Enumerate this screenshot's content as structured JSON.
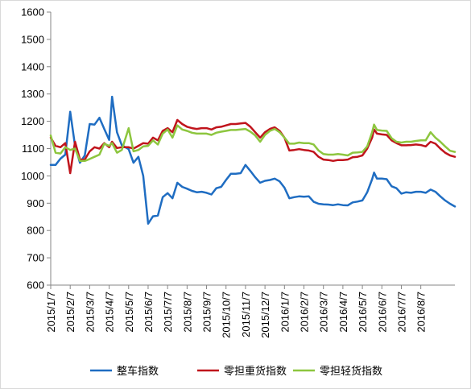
{
  "chart_data": {
    "type": "line",
    "title": "",
    "xlabel": "",
    "ylabel": "",
    "ylim": [
      600,
      1600
    ],
    "yticks": [
      600,
      700,
      800,
      900,
      1000,
      1100,
      1200,
      1300,
      1400,
      1500,
      1600
    ],
    "xticks": [
      "2015/1/7",
      "2015/2/7",
      "2015/3/7",
      "2015/4/7",
      "2015/5/7",
      "2015/6/7",
      "2015/7/7",
      "2015/8/7",
      "2015/9/7",
      "2015/10/7",
      "2015/11/7",
      "2015/12/7",
      "2016/1/7",
      "2016/2/7",
      "2016/3/7",
      "2016/4/7",
      "2016/5/7",
      "2016/6/7",
      "2016/7/7",
      "2016/8/7"
    ],
    "grid": false,
    "legend_position": "bottom",
    "series": [
      {
        "name": "整车指数",
        "color": "#1f6dc2",
        "points": [
          [
            0,
            1040
          ],
          [
            0.25,
            1040
          ],
          [
            0.5,
            1063
          ],
          [
            0.75,
            1078
          ],
          [
            1,
            1235
          ],
          [
            1.25,
            1110
          ],
          [
            1.5,
            1048
          ],
          [
            1.75,
            1075
          ],
          [
            2,
            1190
          ],
          [
            2.25,
            1188
          ],
          [
            2.5,
            1213
          ],
          [
            2.75,
            1172
          ],
          [
            3,
            1132
          ],
          [
            3.15,
            1290
          ],
          [
            3.4,
            1160
          ],
          [
            3.65,
            1112
          ],
          [
            4,
            1098
          ],
          [
            4.25,
            1048
          ],
          [
            4.5,
            1070
          ],
          [
            4.75,
            1000
          ],
          [
            5,
            825
          ],
          [
            5.25,
            852
          ],
          [
            5.5,
            855
          ],
          [
            5.75,
            922
          ],
          [
            6,
            937
          ],
          [
            6.25,
            918
          ],
          [
            6.5,
            975
          ],
          [
            6.75,
            960
          ],
          [
            7,
            953
          ],
          [
            7.25,
            945
          ],
          [
            7.5,
            940
          ],
          [
            7.75,
            942
          ],
          [
            8,
            938
          ],
          [
            8.25,
            932
          ],
          [
            8.5,
            955
          ],
          [
            8.75,
            960
          ],
          [
            9,
            985
          ],
          [
            9.25,
            1008
          ],
          [
            9.5,
            1008
          ],
          [
            9.75,
            1010
          ],
          [
            10,
            1040
          ],
          [
            10.25,
            1018
          ],
          [
            10.5,
            995
          ],
          [
            10.75,
            975
          ],
          [
            11,
            982
          ],
          [
            11.25,
            985
          ],
          [
            11.5,
            990
          ],
          [
            11.75,
            980
          ],
          [
            12,
            957
          ],
          [
            12.25,
            918
          ],
          [
            12.5,
            922
          ],
          [
            12.75,
            925
          ],
          [
            13,
            924
          ],
          [
            13.25,
            925
          ],
          [
            13.5,
            905
          ],
          [
            13.75,
            898
          ],
          [
            14,
            896
          ],
          [
            14.25,
            895
          ],
          [
            14.5,
            893
          ],
          [
            14.75,
            896
          ],
          [
            15,
            893
          ],
          [
            15.25,
            892
          ],
          [
            15.5,
            903
          ],
          [
            15.75,
            906
          ],
          [
            16,
            910
          ],
          [
            16.25,
            940
          ],
          [
            16.5,
            988
          ],
          [
            16.6,
            1012
          ],
          [
            16.75,
            990
          ],
          [
            17,
            990
          ],
          [
            17.25,
            988
          ],
          [
            17.5,
            962
          ],
          [
            17.75,
            955
          ],
          [
            18,
            935
          ],
          [
            18.25,
            940
          ],
          [
            18.5,
            938
          ],
          [
            18.75,
            942
          ],
          [
            19,
            942
          ],
          [
            19.25,
            938
          ],
          [
            19.5,
            950
          ],
          [
            19.75,
            942
          ],
          [
            20,
            925
          ],
          [
            20.25,
            910
          ],
          [
            20.5,
            898
          ],
          [
            20.75,
            888
          ]
        ]
      },
      {
        "name": "零担重货指数",
        "color": "#c0141c",
        "points": [
          [
            0,
            1140
          ],
          [
            0.25,
            1110
          ],
          [
            0.5,
            1105
          ],
          [
            0.75,
            1120
          ],
          [
            1,
            1010
          ],
          [
            1.25,
            1125
          ],
          [
            1.5,
            1060
          ],
          [
            1.75,
            1060
          ],
          [
            2,
            1090
          ],
          [
            2.25,
            1105
          ],
          [
            2.5,
            1100
          ],
          [
            2.75,
            1120
          ],
          [
            3,
            1105
          ],
          [
            3.15,
            1125
          ],
          [
            3.4,
            1102
          ],
          [
            3.65,
            1105
          ],
          [
            4,
            1105
          ],
          [
            4.25,
            1100
          ],
          [
            4.5,
            1110
          ],
          [
            4.75,
            1120
          ],
          [
            5,
            1118
          ],
          [
            5.25,
            1140
          ],
          [
            5.5,
            1130
          ],
          [
            5.75,
            1165
          ],
          [
            6,
            1175
          ],
          [
            6.25,
            1160
          ],
          [
            6.5,
            1205
          ],
          [
            6.75,
            1190
          ],
          [
            7,
            1180
          ],
          [
            7.25,
            1175
          ],
          [
            7.5,
            1172
          ],
          [
            7.75,
            1175
          ],
          [
            8,
            1175
          ],
          [
            8.25,
            1170
          ],
          [
            8.5,
            1178
          ],
          [
            8.75,
            1180
          ],
          [
            9,
            1185
          ],
          [
            9.25,
            1190
          ],
          [
            9.5,
            1190
          ],
          [
            9.75,
            1192
          ],
          [
            10,
            1194
          ],
          [
            10.25,
            1180
          ],
          [
            10.5,
            1160
          ],
          [
            10.75,
            1140
          ],
          [
            11,
            1160
          ],
          [
            11.25,
            1172
          ],
          [
            11.5,
            1178
          ],
          [
            11.75,
            1165
          ],
          [
            12,
            1140
          ],
          [
            12.25,
            1093
          ],
          [
            12.5,
            1095
          ],
          [
            12.75,
            1098
          ],
          [
            13,
            1095
          ],
          [
            13.25,
            1093
          ],
          [
            13.5,
            1088
          ],
          [
            13.75,
            1070
          ],
          [
            14,
            1060
          ],
          [
            14.25,
            1058
          ],
          [
            14.5,
            1055
          ],
          [
            14.75,
            1058
          ],
          [
            15,
            1058
          ],
          [
            15.25,
            1060
          ],
          [
            15.5,
            1068
          ],
          [
            15.75,
            1070
          ],
          [
            16,
            1075
          ],
          [
            16.25,
            1100
          ],
          [
            16.5,
            1140
          ],
          [
            16.6,
            1170
          ],
          [
            16.75,
            1155
          ],
          [
            17,
            1152
          ],
          [
            17.25,
            1150
          ],
          [
            17.5,
            1130
          ],
          [
            17.75,
            1120
          ],
          [
            18,
            1112
          ],
          [
            18.25,
            1112
          ],
          [
            18.5,
            1113
          ],
          [
            18.75,
            1115
          ],
          [
            19,
            1113
          ],
          [
            19.25,
            1108
          ],
          [
            19.5,
            1125
          ],
          [
            19.75,
            1118
          ],
          [
            20,
            1100
          ],
          [
            20.25,
            1085
          ],
          [
            20.5,
            1075
          ],
          [
            20.75,
            1070
          ]
        ]
      },
      {
        "name": "零担轻货指数",
        "color": "#8dc63f",
        "points": [
          [
            0,
            1148
          ],
          [
            0.25,
            1085
          ],
          [
            0.5,
            1082
          ],
          [
            0.75,
            1105
          ],
          [
            1,
            1095
          ],
          [
            1.25,
            1100
          ],
          [
            1.5,
            1055
          ],
          [
            1.75,
            1055
          ],
          [
            2,
            1062
          ],
          [
            2.25,
            1070
          ],
          [
            2.5,
            1078
          ],
          [
            2.75,
            1118
          ],
          [
            3,
            1110
          ],
          [
            3.15,
            1120
          ],
          [
            3.4,
            1085
          ],
          [
            3.65,
            1095
          ],
          [
            4,
            1175
          ],
          [
            4.25,
            1090
          ],
          [
            4.5,
            1095
          ],
          [
            4.75,
            1108
          ],
          [
            5,
            1110
          ],
          [
            5.25,
            1130
          ],
          [
            5.5,
            1115
          ],
          [
            5.75,
            1155
          ],
          [
            6,
            1170
          ],
          [
            6.25,
            1140
          ],
          [
            6.5,
            1185
          ],
          [
            6.75,
            1170
          ],
          [
            7,
            1165
          ],
          [
            7.25,
            1158
          ],
          [
            7.5,
            1155
          ],
          [
            7.75,
            1155
          ],
          [
            8,
            1155
          ],
          [
            8.25,
            1150
          ],
          [
            8.5,
            1158
          ],
          [
            8.75,
            1162
          ],
          [
            9,
            1165
          ],
          [
            9.25,
            1168
          ],
          [
            9.5,
            1168
          ],
          [
            9.75,
            1170
          ],
          [
            10,
            1172
          ],
          [
            10.25,
            1162
          ],
          [
            10.5,
            1148
          ],
          [
            10.75,
            1125
          ],
          [
            11,
            1150
          ],
          [
            11.25,
            1165
          ],
          [
            11.5,
            1172
          ],
          [
            11.75,
            1160
          ],
          [
            12,
            1140
          ],
          [
            12.25,
            1118
          ],
          [
            12.5,
            1118
          ],
          [
            12.75,
            1122
          ],
          [
            13,
            1120
          ],
          [
            13.25,
            1120
          ],
          [
            13.5,
            1115
          ],
          [
            13.75,
            1093
          ],
          [
            14,
            1080
          ],
          [
            14.25,
            1078
          ],
          [
            14.5,
            1078
          ],
          [
            14.75,
            1080
          ],
          [
            15,
            1078
          ],
          [
            15.25,
            1075
          ],
          [
            15.5,
            1085
          ],
          [
            15.75,
            1086
          ],
          [
            16,
            1088
          ],
          [
            16.25,
            1108
          ],
          [
            16.5,
            1160
          ],
          [
            16.6,
            1188
          ],
          [
            16.75,
            1168
          ],
          [
            17,
            1166
          ],
          [
            17.25,
            1165
          ],
          [
            17.5,
            1138
          ],
          [
            17.75,
            1125
          ],
          [
            18,
            1122
          ],
          [
            18.25,
            1125
          ],
          [
            18.5,
            1125
          ],
          [
            18.75,
            1128
          ],
          [
            19,
            1130
          ],
          [
            19.25,
            1130
          ],
          [
            19.5,
            1160
          ],
          [
            19.75,
            1140
          ],
          [
            20,
            1125
          ],
          [
            20.25,
            1108
          ],
          [
            20.5,
            1092
          ],
          [
            20.75,
            1088
          ]
        ]
      }
    ]
  }
}
